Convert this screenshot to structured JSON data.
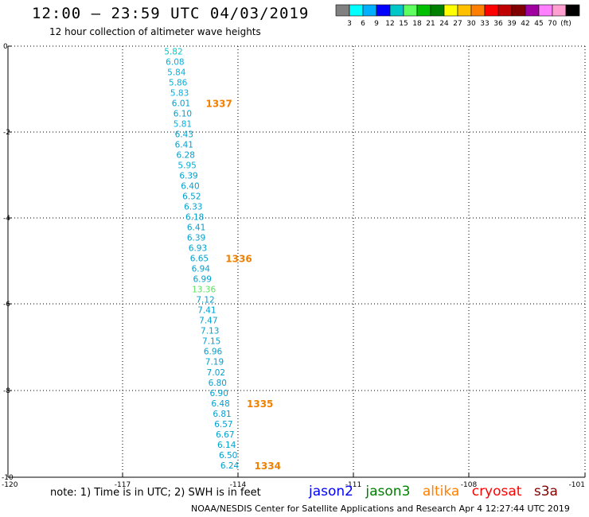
{
  "header": {
    "title": "12:00 – 23:59 UTC 04/03/2019",
    "subtitle": "12 hour collection of altimeter wave heights"
  },
  "colorbar": {
    "colors": [
      "#808080",
      "#00ffff",
      "#00b0ff",
      "#0000ff",
      "#00c8c8",
      "#60ff60",
      "#00c000",
      "#008000",
      "#ffff00",
      "#ffc000",
      "#ff8000",
      "#ff0000",
      "#c00000",
      "#800000",
      "#a000a0",
      "#ff80ff",
      "#ffa0d0",
      "#000000"
    ],
    "labels": [
      "3",
      "6",
      "9",
      "12",
      "15",
      "18",
      "21",
      "24",
      "27",
      "30",
      "33",
      "36",
      "39",
      "42",
      "45",
      "70",
      "(ft)"
    ]
  },
  "chart_data": {
    "type": "scatter",
    "xlim": [
      -120,
      -101
    ],
    "ylim": [
      -10,
      0
    ],
    "grid": true,
    "x_ticks": [
      "-120",
      "-117",
      "-114",
      "-111",
      "-108",
      "-101"
    ],
    "y_ticks": [
      "0",
      "-2",
      "-4",
      "-6",
      "-8",
      "-10"
    ],
    "points": [
      {
        "x": -114.55,
        "y": -0.12,
        "v": "5.82",
        "c": "#00c8c8"
      },
      {
        "x": -114.5,
        "y": -0.36,
        "v": "6.08",
        "c": "#00b0e0"
      },
      {
        "x": -114.45,
        "y": -0.6,
        "v": "5.84",
        "c": "#00b0e0"
      },
      {
        "x": -114.4,
        "y": -0.84,
        "v": "5.86",
        "c": "#00b0e0"
      },
      {
        "x": -114.35,
        "y": -1.08,
        "v": "5.83",
        "c": "#00b0e0"
      },
      {
        "x": -114.3,
        "y": -1.32,
        "v": "6.01",
        "c": "#00a0d0"
      },
      {
        "x": -114.25,
        "y": -1.56,
        "v": "6.10",
        "c": "#00a0d0"
      },
      {
        "x": -114.25,
        "y": -1.8,
        "v": "5.81",
        "c": "#00b0e0"
      },
      {
        "x": -114.2,
        "y": -2.04,
        "v": "6.43",
        "c": "#00a0d0"
      },
      {
        "x": -114.2,
        "y": -2.28,
        "v": "6.41",
        "c": "#00a0d0"
      },
      {
        "x": -114.15,
        "y": -2.52,
        "v": "6.28",
        "c": "#00a0d0"
      },
      {
        "x": -114.1,
        "y": -2.76,
        "v": "5.95",
        "c": "#00b0e0"
      },
      {
        "x": -114.05,
        "y": -3.0,
        "v": "6.39",
        "c": "#00a0d0"
      },
      {
        "x": -114.0,
        "y": -3.24,
        "v": "6.40",
        "c": "#00a0d0"
      },
      {
        "x": -113.95,
        "y": -3.48,
        "v": "6.52",
        "c": "#00a0d0"
      },
      {
        "x": -113.9,
        "y": -3.72,
        "v": "6.33",
        "c": "#00a0d0"
      },
      {
        "x": -113.85,
        "y": -3.96,
        "v": "6.18",
        "c": "#00a0d0"
      },
      {
        "x": -113.8,
        "y": -4.2,
        "v": "6.41",
        "c": "#00a0d0"
      },
      {
        "x": -113.8,
        "y": -4.44,
        "v": "6.39",
        "c": "#00a0d0"
      },
      {
        "x": -113.75,
        "y": -4.68,
        "v": "6.93",
        "c": "#00a0d0"
      },
      {
        "x": -113.7,
        "y": -4.92,
        "v": "6.65",
        "c": "#00a0d0"
      },
      {
        "x": -113.65,
        "y": -5.16,
        "v": "6.94",
        "c": "#00a0d0"
      },
      {
        "x": -113.6,
        "y": -5.4,
        "v": "6.99",
        "c": "#00a0d0"
      },
      {
        "x": -113.55,
        "y": -5.64,
        "v": "13.36",
        "c": "#60e060"
      },
      {
        "x": -113.5,
        "y": -5.88,
        "v": "7.12",
        "c": "#00a0d0"
      },
      {
        "x": -113.45,
        "y": -6.12,
        "v": "7.41",
        "c": "#00a0d0"
      },
      {
        "x": -113.4,
        "y": -6.36,
        "v": "7.47",
        "c": "#00a0d0"
      },
      {
        "x": -113.35,
        "y": -6.6,
        "v": "7.13",
        "c": "#00a0d0"
      },
      {
        "x": -113.3,
        "y": -6.84,
        "v": "7.15",
        "c": "#00a0d0"
      },
      {
        "x": -113.25,
        "y": -7.08,
        "v": "6.96",
        "c": "#00a0d0"
      },
      {
        "x": -113.2,
        "y": -7.32,
        "v": "7.19",
        "c": "#00a0d0"
      },
      {
        "x": -113.15,
        "y": -7.56,
        "v": "7.02",
        "c": "#00a0d0"
      },
      {
        "x": -113.1,
        "y": -7.8,
        "v": "6.80",
        "c": "#00a0d0"
      },
      {
        "x": -113.05,
        "y": -8.04,
        "v": "6.90",
        "c": "#00a0d0"
      },
      {
        "x": -113.0,
        "y": -8.28,
        "v": "6.48",
        "c": "#00a0d0"
      },
      {
        "x": -112.95,
        "y": -8.52,
        "v": "6.81",
        "c": "#00a0d0"
      },
      {
        "x": -112.9,
        "y": -8.76,
        "v": "6.57",
        "c": "#00a0d0"
      },
      {
        "x": -112.85,
        "y": -9.0,
        "v": "6.67",
        "c": "#00a0d0"
      },
      {
        "x": -112.8,
        "y": -9.24,
        "v": "6.14",
        "c": "#00a0d0"
      },
      {
        "x": -112.75,
        "y": -9.48,
        "v": "6.50",
        "c": "#00a0d0"
      },
      {
        "x": -112.7,
        "y": -9.72,
        "v": "6.24",
        "c": "#00a0d0"
      }
    ],
    "annotations": [
      {
        "x": -113.05,
        "y": -1.32,
        "text": "1337",
        "c": "#f08000"
      },
      {
        "x": -112.4,
        "y": -4.92,
        "text": "1336",
        "c": "#f08000"
      },
      {
        "x": -111.7,
        "y": -8.28,
        "text": "1335",
        "c": "#f08000"
      },
      {
        "x": -111.45,
        "y": -9.72,
        "text": "1334",
        "c": "#f08000"
      }
    ]
  },
  "footer": {
    "note": "note:  1) Time is in UTC;  2) SWH is in feet",
    "satellites": [
      {
        "name": "jason2",
        "color": "#0000ff"
      },
      {
        "name": "jason3",
        "color": "#008000"
      },
      {
        "name": "altika",
        "color": "#ff8000"
      },
      {
        "name": "cryosat",
        "color": "#ff0000"
      },
      {
        "name": "s3a",
        "color": "#800000"
      }
    ],
    "credit": "NOAA/NESDIS Center for Satellite Applications and Research     Apr  4 12:27:44 UTC 2019"
  }
}
